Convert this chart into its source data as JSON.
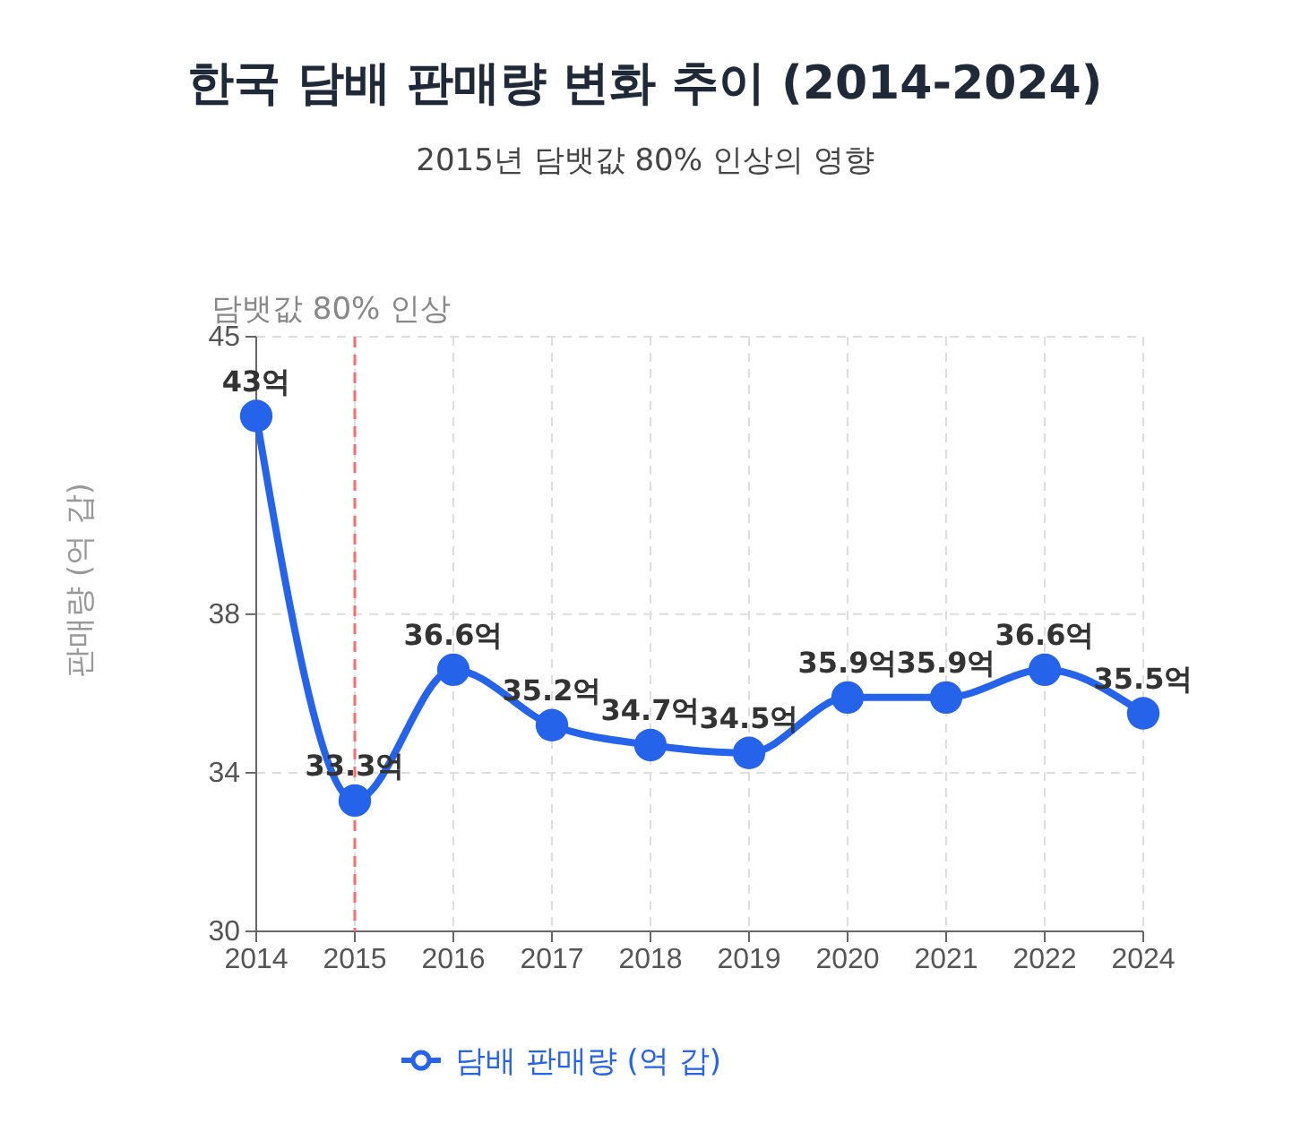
{
  "chart_data": {
    "type": "line",
    "title": "한국 담배 판매량 변화 추이 (2014-2024)",
    "subtitle": "2015년 담뱃값 80% 인상의 영향",
    "ylabel": "판매량 (억 갑)",
    "categories": [
      "2014",
      "2015",
      "2016",
      "2017",
      "2018",
      "2019",
      "2020",
      "2021",
      "2022",
      "2024"
    ],
    "series": [
      {
        "name": "담배 판매량 (억 갑)",
        "color": "#2563eb",
        "values": [
          43,
          33.3,
          36.6,
          35.2,
          34.7,
          34.5,
          35.9,
          35.9,
          36.6,
          35.5
        ],
        "value_labels": [
          "43억",
          "33.3억",
          "36.6억",
          "35.2억",
          "34.7억",
          "34.5억",
          "35.9억",
          "35.9억",
          "36.6억",
          "35.5억"
        ]
      }
    ],
    "ylim": [
      30,
      45
    ],
    "yticks": [
      30,
      34,
      38,
      45
    ],
    "grid": true,
    "legend": "bottom",
    "marker": "circle",
    "line_style": "solid",
    "ref_lines": [
      {
        "axis": "x",
        "value": "2015",
        "label": "담뱃값 80% 인상",
        "color": "#ff6b6b",
        "line_style": "dashed"
      }
    ]
  }
}
